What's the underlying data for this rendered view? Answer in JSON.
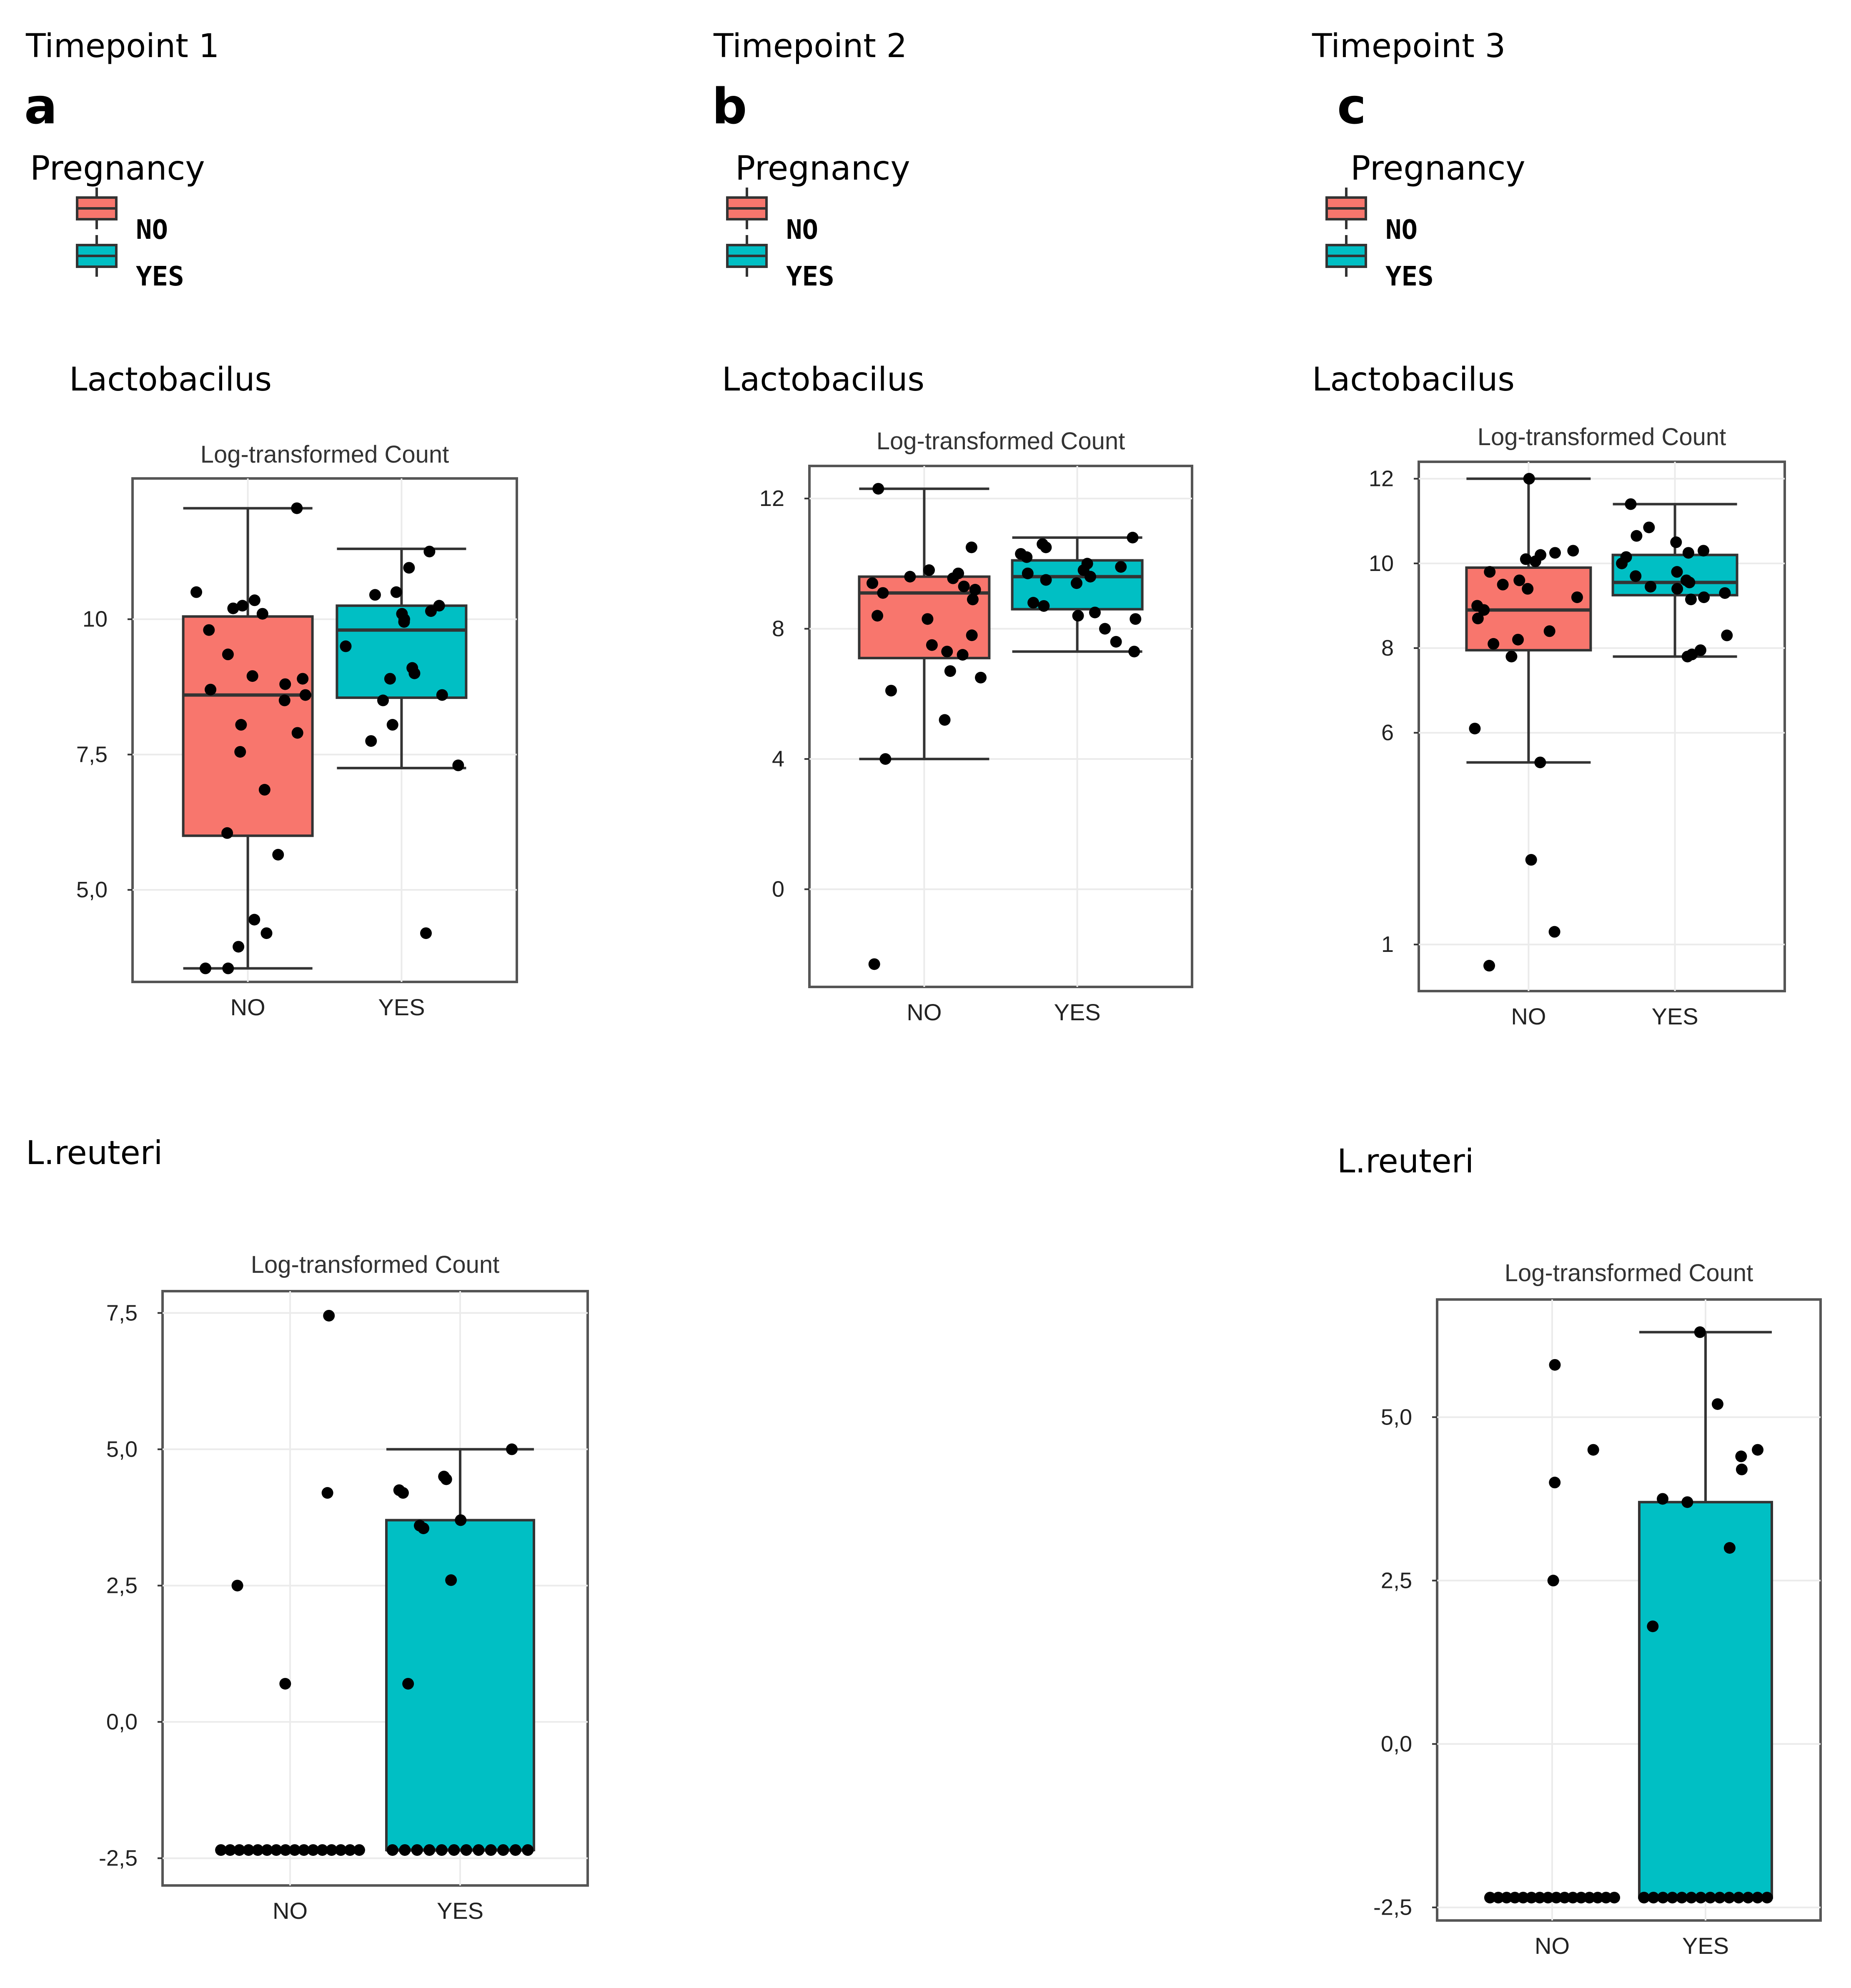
{
  "colors": {
    "no": "#F8766D",
    "yes": "#00BFC4",
    "point": "#000000",
    "grid": "#EBEBEB",
    "frame": "#555555"
  },
  "timepoints": [
    {
      "label": "Timepoint 1",
      "panel": "a"
    },
    {
      "label": "Timepoint 2",
      "panel": "b"
    },
    {
      "label": "Timepoint 3",
      "panel": "c"
    }
  ],
  "legend": {
    "title": "Pregnancy",
    "no_label": "NO",
    "yes_label": "YES"
  },
  "sections": {
    "lacto": "Lactobacilus",
    "reuteri": "L.reuteri"
  },
  "chart_data": [
    {
      "id": "lacto-t1",
      "type": "box",
      "title": "Log-transformed Count",
      "series_label": "Lactobacilus",
      "timepoint": "Timepoint 1",
      "categories": [
        "NO",
        "YES"
      ],
      "ylim": [
        3.3,
        12.6
      ],
      "yticks": [
        {
          "v": 5.0,
          "label": "5,0"
        },
        {
          "v": 7.5,
          "label": "7,5"
        },
        {
          "v": 10,
          "label": "10"
        }
      ],
      "boxes": [
        {
          "category": "NO",
          "q1": 6.0,
          "median": 8.6,
          "q3": 10.05,
          "whisker_low": 3.55,
          "whisker_high": 12.05
        },
        {
          "category": "YES",
          "q1": 8.55,
          "median": 9.8,
          "q3": 10.25,
          "whisker_low": 7.25,
          "whisker_high": 11.3
        }
      ],
      "points": [
        {
          "category": "NO",
          "values": [
            12.05,
            10.5,
            10.35,
            10.2,
            10.25,
            10.1,
            9.8,
            9.35,
            8.95,
            8.9,
            8.8,
            8.7,
            8.6,
            8.5,
            8.05,
            7.9,
            7.55,
            6.85,
            6.05,
            5.65,
            4.45,
            4.2,
            3.95,
            3.55,
            3.55
          ]
        },
        {
          "category": "YES",
          "values": [
            11.25,
            10.95,
            10.5,
            10.45,
            10.25,
            10.15,
            10.1,
            10.0,
            9.95,
            9.5,
            9.1,
            9.0,
            8.9,
            8.6,
            8.5,
            8.05,
            7.75,
            7.3,
            4.2
          ]
        }
      ]
    },
    {
      "id": "lacto-t2",
      "type": "box",
      "title": "Log-transformed Count",
      "series_label": "Lactobacilus",
      "timepoint": "Timepoint 2",
      "categories": [
        "NO",
        "YES"
      ],
      "ylim": [
        -3.0,
        13.0
      ],
      "yticks": [
        {
          "v": 0,
          "label": "0"
        },
        {
          "v": 4,
          "label": "4"
        },
        {
          "v": 8,
          "label": "8"
        },
        {
          "v": 12,
          "label": "12"
        }
      ],
      "boxes": [
        {
          "category": "NO",
          "q1": 7.1,
          "median": 9.1,
          "q3": 9.6,
          "whisker_low": 4.0,
          "whisker_high": 12.3
        },
        {
          "category": "YES",
          "q1": 8.6,
          "median": 9.6,
          "q3": 10.1,
          "whisker_low": 7.3,
          "whisker_high": 10.8
        }
      ],
      "points": [
        {
          "category": "NO",
          "values": [
            12.3,
            10.5,
            9.8,
            9.7,
            9.6,
            9.55,
            9.4,
            9.3,
            9.2,
            9.1,
            8.9,
            8.4,
            8.3,
            7.8,
            7.5,
            7.3,
            7.2,
            6.7,
            6.5,
            6.1,
            5.2,
            4.0,
            -2.3
          ]
        },
        {
          "category": "YES",
          "values": [
            10.8,
            10.6,
            10.5,
            10.3,
            10.2,
            10.0,
            9.9,
            9.8,
            9.7,
            9.6,
            9.5,
            9.4,
            8.8,
            8.7,
            8.5,
            8.4,
            8.3,
            8.0,
            7.6,
            7.3
          ]
        }
      ]
    },
    {
      "id": "lacto-t3",
      "type": "box",
      "title": "Log-transformed Count",
      "series_label": "Lactobacilus",
      "timepoint": "Timepoint 3",
      "categories": [
        "NO",
        "YES"
      ],
      "ylim": [
        -0.1,
        12.4
      ],
      "yticks": [
        {
          "v": 12,
          "label": "12"
        },
        {
          "v": 10,
          "label": "10"
        },
        {
          "v": 8,
          "label": "8"
        },
        {
          "v": 6,
          "label": "6"
        },
        {
          "v": 1,
          "label": "1"
        }
      ],
      "boxes": [
        {
          "category": "NO",
          "q1": 7.95,
          "median": 8.9,
          "q3": 9.9,
          "whisker_low": 5.3,
          "whisker_high": 12.0
        },
        {
          "category": "YES",
          "q1": 9.25,
          "median": 9.55,
          "q3": 10.2,
          "whisker_low": 7.8,
          "whisker_high": 11.4
        }
      ],
      "points": [
        {
          "category": "NO",
          "values": [
            12.0,
            10.3,
            10.25,
            10.2,
            10.1,
            10.05,
            9.8,
            9.6,
            9.5,
            9.4,
            9.2,
            9.0,
            8.9,
            8.7,
            8.4,
            8.2,
            8.1,
            7.8,
            6.1,
            5.3,
            3.0,
            1.3,
            0.5
          ]
        },
        {
          "category": "YES",
          "values": [
            11.4,
            10.85,
            10.65,
            10.5,
            10.3,
            10.25,
            10.15,
            10.0,
            9.8,
            9.7,
            9.6,
            9.55,
            9.45,
            9.4,
            9.3,
            9.2,
            9.15,
            8.3,
            7.95,
            7.85,
            7.8
          ]
        }
      ]
    },
    {
      "id": "reuteri-t1",
      "type": "box",
      "title": "Log-transformed Count",
      "series_label": "L.reuteri",
      "timepoint": "Timepoint 1",
      "categories": [
        "NO",
        "YES"
      ],
      "ylim": [
        -3.0,
        7.9
      ],
      "yticks": [
        {
          "v": 7.5,
          "label": "7,5"
        },
        {
          "v": 5.0,
          "label": "5,0"
        },
        {
          "v": 2.5,
          "label": "2,5"
        },
        {
          "v": 0.0,
          "label": "0,0"
        },
        {
          "v": -2.5,
          "label": "-2,5"
        }
      ],
      "boxes": [
        {
          "category": "YES",
          "q1": -2.35,
          "median": -2.35,
          "q3": 3.7,
          "whisker_low": -2.35,
          "whisker_high": 5.0
        }
      ],
      "points": [
        {
          "category": "NO",
          "values": [
            7.45,
            4.2,
            2.5,
            0.7,
            -2.35,
            -2.35,
            -2.35,
            -2.35,
            -2.35,
            -2.35,
            -2.35,
            -2.35,
            -2.35,
            -2.35,
            -2.35,
            -2.35,
            -2.35,
            -2.35,
            -2.35,
            -2.35
          ]
        },
        {
          "category": "YES",
          "values": [
            5.0,
            4.5,
            4.45,
            4.25,
            4.2,
            3.7,
            3.55,
            3.6,
            2.6,
            0.7,
            -2.35,
            -2.35,
            -2.35,
            -2.35,
            -2.35,
            -2.35,
            -2.35,
            -2.35,
            -2.35,
            -2.35,
            -2.35,
            -2.35
          ]
        }
      ]
    },
    {
      "id": "reuteri-t3",
      "type": "box",
      "title": "Log-transformed Count",
      "series_label": "L.reuteri",
      "timepoint": "Timepoint 3",
      "categories": [
        "NO",
        "YES"
      ],
      "ylim": [
        -2.7,
        6.8
      ],
      "yticks": [
        {
          "v": 5.0,
          "label": "5,0"
        },
        {
          "v": 2.5,
          "label": "2,5"
        },
        {
          "v": 0.0,
          "label": "0,0"
        },
        {
          "v": -2.5,
          "label": "-2,5"
        }
      ],
      "boxes": [
        {
          "category": "YES",
          "q1": -2.35,
          "median": -2.35,
          "q3": 3.7,
          "whisker_low": -2.35,
          "whisker_high": 6.3
        }
      ],
      "points": [
        {
          "category": "NO",
          "values": [
            5.8,
            4.5,
            4.0,
            2.5,
            -2.35,
            -2.35,
            -2.35,
            -2.35,
            -2.35,
            -2.35,
            -2.35,
            -2.35,
            -2.35,
            -2.35,
            -2.35,
            -2.35,
            -2.35,
            -2.35,
            -2.35,
            -2.35
          ]
        },
        {
          "category": "YES",
          "values": [
            6.3,
            5.2,
            4.5,
            4.4,
            4.2,
            3.7,
            3.75,
            3.0,
            1.8,
            -2.35,
            -2.35,
            -2.35,
            -2.35,
            -2.35,
            -2.35,
            -2.35,
            -2.35,
            -2.35,
            -2.35,
            -2.35,
            -2.35,
            -2.35,
            -2.35
          ]
        }
      ]
    }
  ]
}
